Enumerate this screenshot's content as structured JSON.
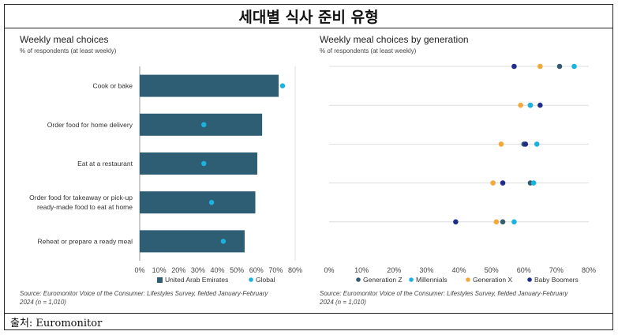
{
  "header": {
    "title": "세대별 식사 준비 유형"
  },
  "footer": {
    "source": "출처: Euromonitor"
  },
  "colors": {
    "bar": "#2e5e74",
    "global": "#1ab3e0",
    "generation_z": "#355c6e",
    "millennials": "#1ab3e0",
    "generation_x": "#f2a93b",
    "baby_boomers": "#1f2e8a"
  },
  "chart_data": [
    {
      "type": "bar",
      "orientation": "horizontal",
      "title": "Weekly meal choices",
      "subtitle": "% of respondents (at least weekly)",
      "categories": [
        "Cook or bake",
        "Order food for home delivery",
        "Eat at a restaurant",
        "Order food for takeaway or pick-up\nready-made food to eat at home",
        "Reheat or prepare a ready meal"
      ],
      "series": [
        {
          "name": "United Arab Emirates",
          "mark": "bar",
          "values": [
            71.5,
            63,
            60.5,
            59.5,
            54
          ]
        },
        {
          "name": "Global",
          "mark": "dot",
          "values": [
            73.5,
            33,
            33,
            37,
            43
          ]
        }
      ],
      "xlim": [
        0,
        80
      ],
      "xticks": [
        "0%",
        "10%",
        "20%",
        "30%",
        "40%",
        "50%",
        "60%",
        "70%",
        "80%"
      ],
      "legend": "bottom",
      "source": "Source: Euromonitor Voice of the Consumer: Lifestyles Survey, fielded January-February 2024 (n = 1,010)"
    },
    {
      "type": "scatter",
      "title": "Weekly meal choices by generation",
      "subtitle": "% of respondents (at least weekly)",
      "rows": 5,
      "series": [
        {
          "name": "Generation Z",
          "values": [
            71,
            62,
            60,
            62,
            53.5
          ]
        },
        {
          "name": "Millennials",
          "values": [
            75.5,
            62,
            64,
            63,
            57
          ]
        },
        {
          "name": "Generation X",
          "values": [
            65,
            59,
            53,
            50.5,
            51.5
          ]
        },
        {
          "name": "Baby Boomers",
          "values": [
            57,
            65,
            60.5,
            53.5,
            39
          ]
        }
      ],
      "xlim": [
        0,
        80
      ],
      "xticks": [
        "0%",
        "10%",
        "20%",
        "30%",
        "40%",
        "50%",
        "60%",
        "70%",
        "80%"
      ],
      "legend": "bottom",
      "source": "Source: Euromonitor Voice of the Consumer: Lifestyles Survey, fielded January-February 2024 (n = 1,010)"
    }
  ]
}
